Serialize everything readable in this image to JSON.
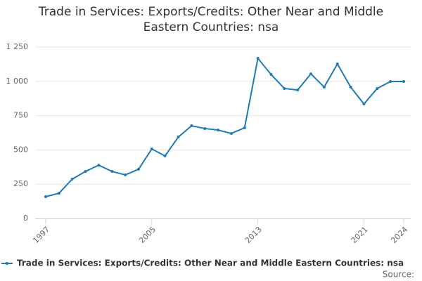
{
  "chart_data": {
    "type": "line",
    "title": "Trade in Services: Exports/Credits: Other Near and Middle Eastern Countries: nsa",
    "x": [
      1997,
      1998,
      1999,
      2000,
      2001,
      2002,
      2003,
      2004,
      2005,
      2006,
      2007,
      2008,
      2009,
      2010,
      2011,
      2012,
      2013,
      2014,
      2015,
      2016,
      2017,
      2018,
      2019,
      2020,
      2021,
      2022,
      2023,
      2024
    ],
    "series": [
      {
        "name": "Trade in Services: Exports/Credits: Other Near and Middle Eastern Countries: nsa",
        "color": "#1f7ab5",
        "values": [
          159,
          184,
          287,
          343,
          389,
          343,
          318,
          359,
          507,
          456,
          594,
          676,
          656,
          645,
          620,
          661,
          1168,
          1050,
          948,
          937,
          1055,
          958,
          1127,
          958,
          835,
          948,
          999,
          999
        ]
      }
    ],
    "xlim": [
      1997,
      2024
    ],
    "xticks": [
      1997,
      2005,
      2013,
      2021,
      2024
    ],
    "ylim": [
      0,
      1250
    ],
    "yticks": [
      0,
      250,
      500,
      750,
      {
        "value": 1000,
        "label": "1 000"
      },
      {
        "value": 1250,
        "label": "1 250"
      }
    ],
    "grid": true,
    "source": "Source:"
  }
}
